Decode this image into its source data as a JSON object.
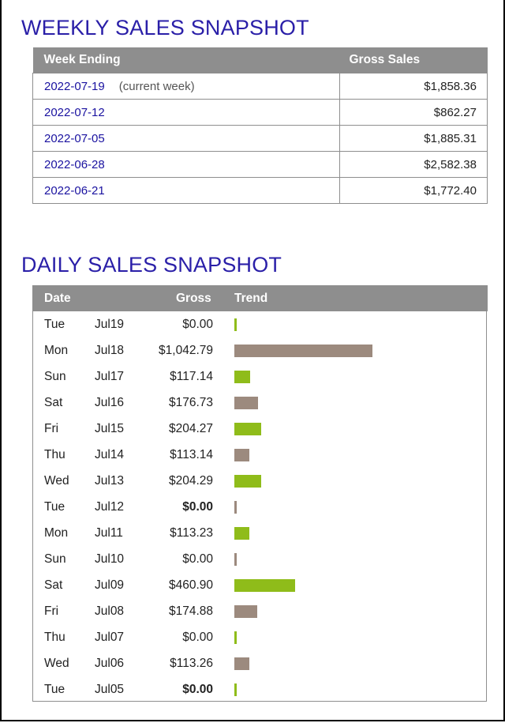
{
  "weekly": {
    "title": "WEEKLY SALES SNAPSHOT",
    "headers": {
      "week": "Week Ending",
      "sales": "Gross Sales"
    },
    "rows": [
      {
        "week": "2022-07-19",
        "note": "(current week)",
        "amount": "$1,858.36"
      },
      {
        "week": "2022-07-12",
        "note": "",
        "amount": "$862.27"
      },
      {
        "week": "2022-07-05",
        "note": "",
        "amount": "$1,885.31"
      },
      {
        "week": "2022-06-28",
        "note": "",
        "amount": "$2,582.38"
      },
      {
        "week": "2022-06-21",
        "note": "",
        "amount": "$1,772.40"
      }
    ]
  },
  "daily": {
    "title": "DAILY SALES SNAPSHOT",
    "headers": {
      "date": "Date",
      "gross": "Gross",
      "trend": "Trend"
    },
    "colors": {
      "green": "#8fbc1a",
      "taupe": "#9c8a7e"
    },
    "rows": [
      {
        "day": "Tue",
        "date": "Jul19",
        "gross": "$0.00",
        "value": 0.0,
        "bold": false,
        "color": "green"
      },
      {
        "day": "Mon",
        "date": "Jul18",
        "gross": "$1,042.79",
        "value": 1042.79,
        "bold": false,
        "color": "taupe"
      },
      {
        "day": "Sun",
        "date": "Jul17",
        "gross": "$117.14",
        "value": 117.14,
        "bold": false,
        "color": "green"
      },
      {
        "day": "Sat",
        "date": "Jul16",
        "gross": "$176.73",
        "value": 176.73,
        "bold": false,
        "color": "taupe"
      },
      {
        "day": "Fri",
        "date": "Jul15",
        "gross": "$204.27",
        "value": 204.27,
        "bold": false,
        "color": "green"
      },
      {
        "day": "Thu",
        "date": "Jul14",
        "gross": "$113.14",
        "value": 113.14,
        "bold": false,
        "color": "taupe"
      },
      {
        "day": "Wed",
        "date": "Jul13",
        "gross": "$204.29",
        "value": 204.29,
        "bold": false,
        "color": "green"
      },
      {
        "day": "Tue",
        "date": "Jul12",
        "gross": "$0.00",
        "value": 0.0,
        "bold": true,
        "color": "taupe"
      },
      {
        "day": "Mon",
        "date": "Jul11",
        "gross": "$113.23",
        "value": 113.23,
        "bold": false,
        "color": "green"
      },
      {
        "day": "Sun",
        "date": "Jul10",
        "gross": "$0.00",
        "value": 0.0,
        "bold": false,
        "color": "taupe"
      },
      {
        "day": "Sat",
        "date": "Jul09",
        "gross": "$460.90",
        "value": 460.9,
        "bold": false,
        "color": "green"
      },
      {
        "day": "Fri",
        "date": "Jul08",
        "gross": "$174.88",
        "value": 174.88,
        "bold": false,
        "color": "taupe"
      },
      {
        "day": "Thu",
        "date": "Jul07",
        "gross": "$0.00",
        "value": 0.0,
        "bold": false,
        "color": "green"
      },
      {
        "day": "Wed",
        "date": "Jul06",
        "gross": "$113.26",
        "value": 113.26,
        "bold": false,
        "color": "taupe"
      },
      {
        "day": "Tue",
        "date": "Jul05",
        "gross": "$0.00",
        "value": 0.0,
        "bold": true,
        "color": "green"
      }
    ]
  }
}
